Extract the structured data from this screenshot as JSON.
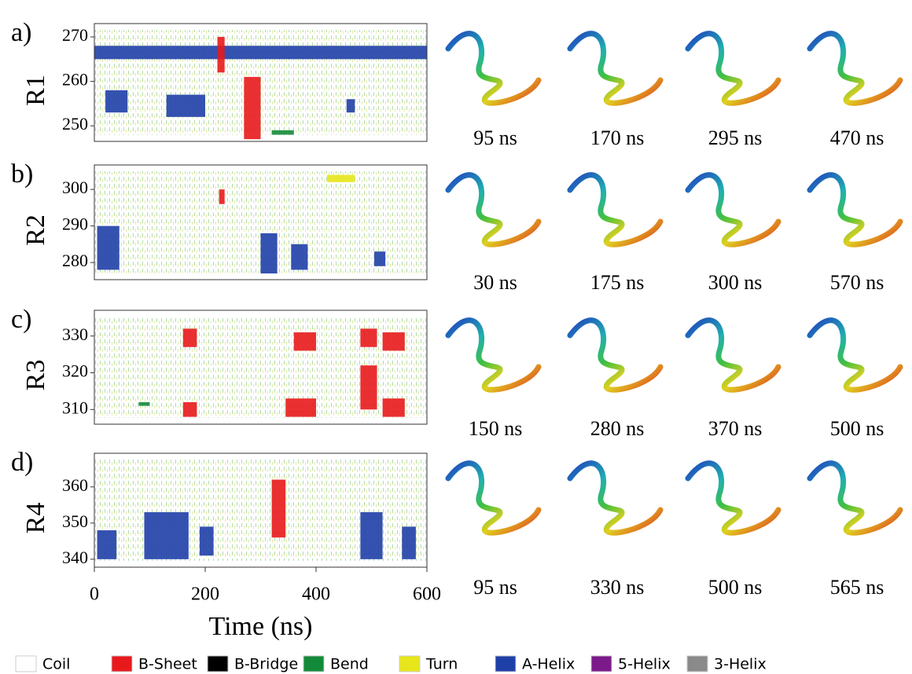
{
  "chart_data": [
    {
      "type": "dssp",
      "panel_label": "a)",
      "ylabel": "R1",
      "xlim": [
        0,
        600
      ],
      "ylim": [
        246.5,
        273
      ],
      "yticks": [
        250,
        260,
        270
      ],
      "snapshots": [
        "95 ns",
        "170 ns",
        "295 ns",
        "470 ns"
      ],
      "regions": [
        {
          "color": "#1f3fa8",
          "t": [
            20,
            60
          ],
          "res": [
            253,
            258
          ]
        },
        {
          "color": "#1f3fa8",
          "t": [
            130,
            200
          ],
          "res": [
            252,
            257
          ]
        },
        {
          "color": "#1f3fa8",
          "t": [
            455,
            470
          ],
          "res": [
            253,
            256
          ]
        },
        {
          "color": "#1f3fa8",
          "t": [
            0,
            600
          ],
          "res": [
            265,
            268
          ]
        },
        {
          "color": "#e8191c",
          "t": [
            270,
            300
          ],
          "res": [
            247,
            261
          ]
        },
        {
          "color": "#e8191c",
          "t": [
            222,
            235
          ],
          "res": [
            262,
            270
          ]
        },
        {
          "color": "#138a3a",
          "t": [
            320,
            360
          ],
          "res": [
            248,
            249
          ]
        }
      ]
    },
    {
      "type": "dssp",
      "panel_label": "b)",
      "ylabel": "R2",
      "xlim": [
        0,
        600
      ],
      "ylim": [
        275.3,
        306.7
      ],
      "yticks": [
        280,
        290,
        300
      ],
      "snapshots": [
        "30 ns",
        "175 ns",
        "300 ns",
        "570 ns"
      ],
      "regions": [
        {
          "color": "#1f3fa8",
          "t": [
            5,
            45
          ],
          "res": [
            278,
            290
          ]
        },
        {
          "color": "#1f3fa8",
          "t": [
            300,
            330
          ],
          "res": [
            277,
            288
          ]
        },
        {
          "color": "#1f3fa8",
          "t": [
            355,
            385
          ],
          "res": [
            278,
            285
          ]
        },
        {
          "color": "#1f3fa8",
          "t": [
            505,
            525
          ],
          "res": [
            279,
            283
          ]
        },
        {
          "color": "#e8191c",
          "t": [
            225,
            235
          ],
          "res": [
            296,
            300
          ]
        },
        {
          "color": "#e7e61a",
          "t": [
            420,
            470
          ],
          "res": [
            302,
            304
          ]
        }
      ]
    },
    {
      "type": "dssp",
      "panel_label": "c)",
      "ylabel": "R3",
      "xlim": [
        0,
        600
      ],
      "ylim": [
        306,
        337
      ],
      "yticks": [
        310,
        320,
        330
      ],
      "snapshots": [
        "150 ns",
        "280 ns",
        "370 ns",
        "500 ns"
      ],
      "regions": [
        {
          "color": "#e8191c",
          "t": [
            160,
            185
          ],
          "res": [
            327,
            332
          ]
        },
        {
          "color": "#e8191c",
          "t": [
            160,
            185
          ],
          "res": [
            308,
            312
          ]
        },
        {
          "color": "#e8191c",
          "t": [
            480,
            510
          ],
          "res": [
            310,
            322
          ]
        },
        {
          "color": "#e8191c",
          "t": [
            480,
            510
          ],
          "res": [
            327,
            332
          ]
        },
        {
          "color": "#e8191c",
          "t": [
            520,
            560
          ],
          "res": [
            308,
            313
          ]
        },
        {
          "color": "#e8191c",
          "t": [
            520,
            560
          ],
          "res": [
            326,
            331
          ]
        },
        {
          "color": "#e8191c",
          "t": [
            360,
            400
          ],
          "res": [
            326,
            331
          ]
        },
        {
          "color": "#e8191c",
          "t": [
            345,
            400
          ],
          "res": [
            308,
            313
          ]
        },
        {
          "color": "#138a3a",
          "t": [
            80,
            100
          ],
          "res": [
            311,
            312
          ]
        }
      ]
    },
    {
      "type": "dssp",
      "panel_label": "d)",
      "ylabel": "R4",
      "xlim": [
        0,
        600
      ],
      "ylim": [
        337.8,
        369.3
      ],
      "yticks": [
        340,
        350,
        360
      ],
      "xticks": [
        0,
        200,
        400,
        600
      ],
      "xlabel": "Time (ns)",
      "snapshots": [
        "95 ns",
        "330 ns",
        "500 ns",
        "565 ns"
      ],
      "regions": [
        {
          "color": "#1f3fa8",
          "t": [
            5,
            40
          ],
          "res": [
            340,
            348
          ]
        },
        {
          "color": "#1f3fa8",
          "t": [
            90,
            170
          ],
          "res": [
            340,
            353
          ]
        },
        {
          "color": "#1f3fa8",
          "t": [
            190,
            215
          ],
          "res": [
            341,
            349
          ]
        },
        {
          "color": "#1f3fa8",
          "t": [
            480,
            520
          ],
          "res": [
            340,
            353
          ]
        },
        {
          "color": "#1f3fa8",
          "t": [
            555,
            580
          ],
          "res": [
            340,
            349
          ]
        },
        {
          "color": "#e8191c",
          "t": [
            320,
            345
          ],
          "res": [
            346,
            362
          ]
        }
      ]
    }
  ],
  "legend": [
    {
      "name": "Coil",
      "color": "#ffffff"
    },
    {
      "name": "B-Sheet",
      "color": "#e8191c"
    },
    {
      "name": "B-Bridge",
      "color": "#000000"
    },
    {
      "name": "Bend",
      "color": "#138a3a"
    },
    {
      "name": "Turn",
      "color": "#e7e61a"
    },
    {
      "name": "A-Helix",
      "color": "#1f3fa8"
    },
    {
      "name": "5-Helix",
      "color": "#7b1a8a"
    },
    {
      "name": "3-Helix",
      "color": "#8a8a8a"
    }
  ]
}
